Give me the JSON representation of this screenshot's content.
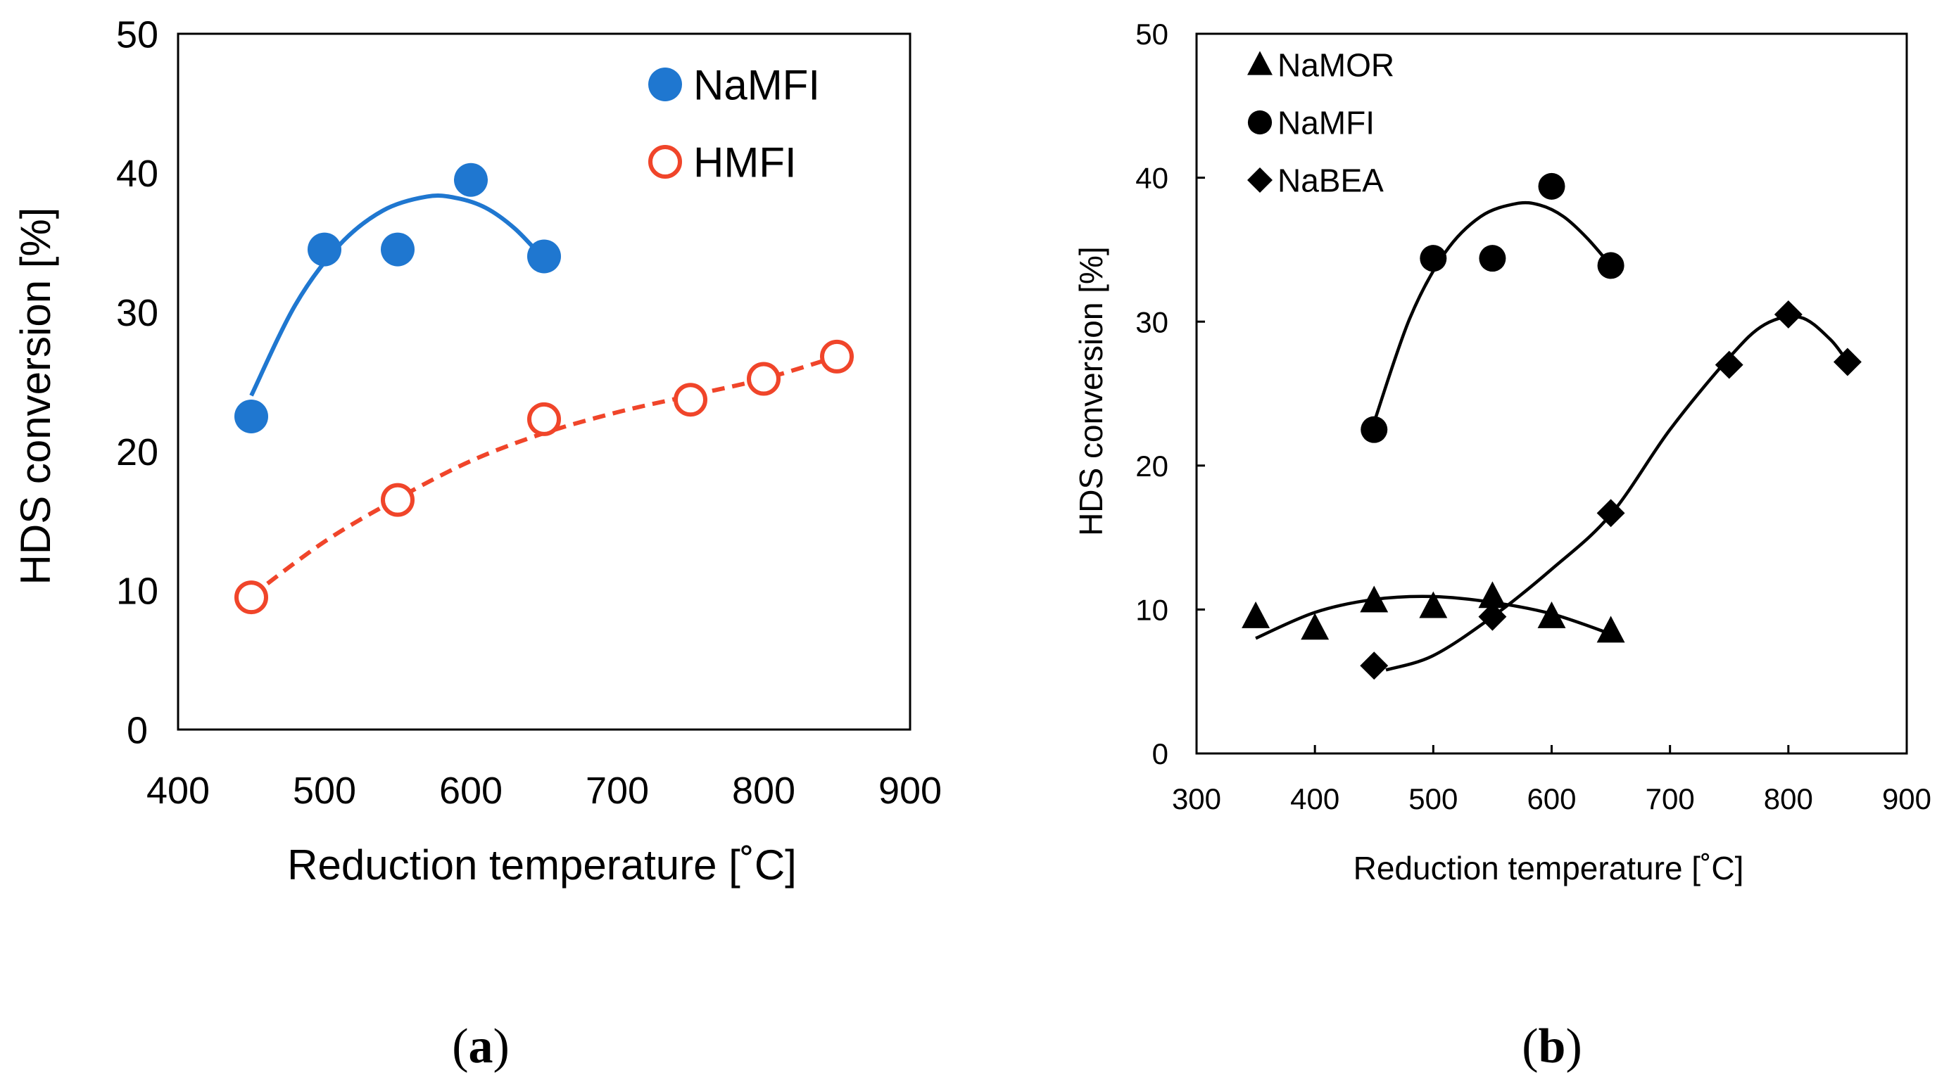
{
  "chart_data": [
    {
      "panel": "a",
      "panel_label": "a",
      "type": "scatter",
      "xlabel": "Reduction temperature [˚C]",
      "ylabel": "HDS conversion [%]",
      "xlim": [
        400,
        900
      ],
      "ylim": [
        0,
        50
      ],
      "xticks": [
        400,
        500,
        600,
        700,
        800,
        900
      ],
      "yticks": [
        0,
        10,
        20,
        30,
        40,
        50
      ],
      "legend_position": "top-right",
      "series": [
        {
          "name": "NaMFI",
          "marker": "filled-circle",
          "color": "#1f77d0",
          "line": "solid",
          "x": [
            450,
            500,
            550,
            600,
            650
          ],
          "y": [
            22.5,
            34.5,
            34.5,
            39.5,
            34
          ],
          "fit": {
            "x": [
              450,
              480,
              510,
              540,
              570,
              590,
              610,
              630,
              650
            ],
            "y": [
              24.0,
              30.5,
              34.8,
              37.3,
              38.3,
              38.2,
              37.5,
              36.0,
              33.8
            ]
          }
        },
        {
          "name": "HMFI",
          "marker": "open-circle",
          "color": "#f0452a",
          "line": "dashed",
          "x": [
            450,
            550,
            650,
            750,
            800,
            850
          ],
          "y": [
            9.5,
            16.5,
            22.3,
            23.7,
            25.2,
            26.8
          ],
          "fit": {
            "x": [
              450,
              500,
              550,
              600,
              650,
              700,
              750,
              800,
              850
            ],
            "y": [
              9.6,
              13.5,
              16.6,
              19.3,
              21.3,
              22.8,
              24.0,
              25.2,
              26.8
            ]
          }
        }
      ]
    },
    {
      "panel": "b",
      "panel_label": "b",
      "type": "scatter",
      "xlabel": "Reduction temperature [˚C]",
      "ylabel": "HDS conversion [%]",
      "xlim": [
        300,
        900
      ],
      "ylim": [
        0,
        50
      ],
      "xticks": [
        300,
        400,
        500,
        600,
        700,
        800,
        900
      ],
      "yticks": [
        0,
        10,
        20,
        30,
        40,
        50
      ],
      "legend_position": "top-left",
      "series": [
        {
          "name": "NaMOR",
          "marker": "triangle",
          "color": "#000000",
          "x": [
            350,
            400,
            450,
            500,
            550,
            600,
            650
          ],
          "y": [
            9.5,
            8.7,
            10.6,
            10.2,
            10.9,
            9.5,
            8.5
          ],
          "fit": {
            "x": [
              350,
              400,
              450,
              500,
              550,
              600,
              650
            ],
            "y": [
              8.0,
              9.8,
              10.7,
              10.9,
              10.5,
              9.7,
              8.3
            ]
          }
        },
        {
          "name": "NaMFI",
          "marker": "filled-circle",
          "color": "#000000",
          "x": [
            450,
            500,
            550,
            600,
            650
          ],
          "y": [
            22.5,
            34.4,
            34.4,
            39.4,
            33.9
          ],
          "fit": {
            "x": [
              450,
              480,
              510,
              540,
              570,
              590,
              610,
              630,
              650
            ],
            "y": [
              23.0,
              30.2,
              34.8,
              37.3,
              38.2,
              38.1,
              37.3,
              35.8,
              33.9
            ]
          }
        },
        {
          "name": "NaBEA",
          "marker": "diamond",
          "color": "#000000",
          "x": [
            450,
            550,
            650,
            750,
            800,
            850
          ],
          "y": [
            6.1,
            9.5,
            16.7,
            27.0,
            30.5,
            27.2
          ],
          "fit": {
            "x": [
              460,
              500,
              550,
              600,
              650,
              700,
              750,
              780,
              810,
              835,
              850
            ],
            "y": [
              5.8,
              6.8,
              9.5,
              12.8,
              16.6,
              22.5,
              27.5,
              29.8,
              30.3,
              28.8,
              27.2
            ]
          }
        }
      ]
    }
  ]
}
